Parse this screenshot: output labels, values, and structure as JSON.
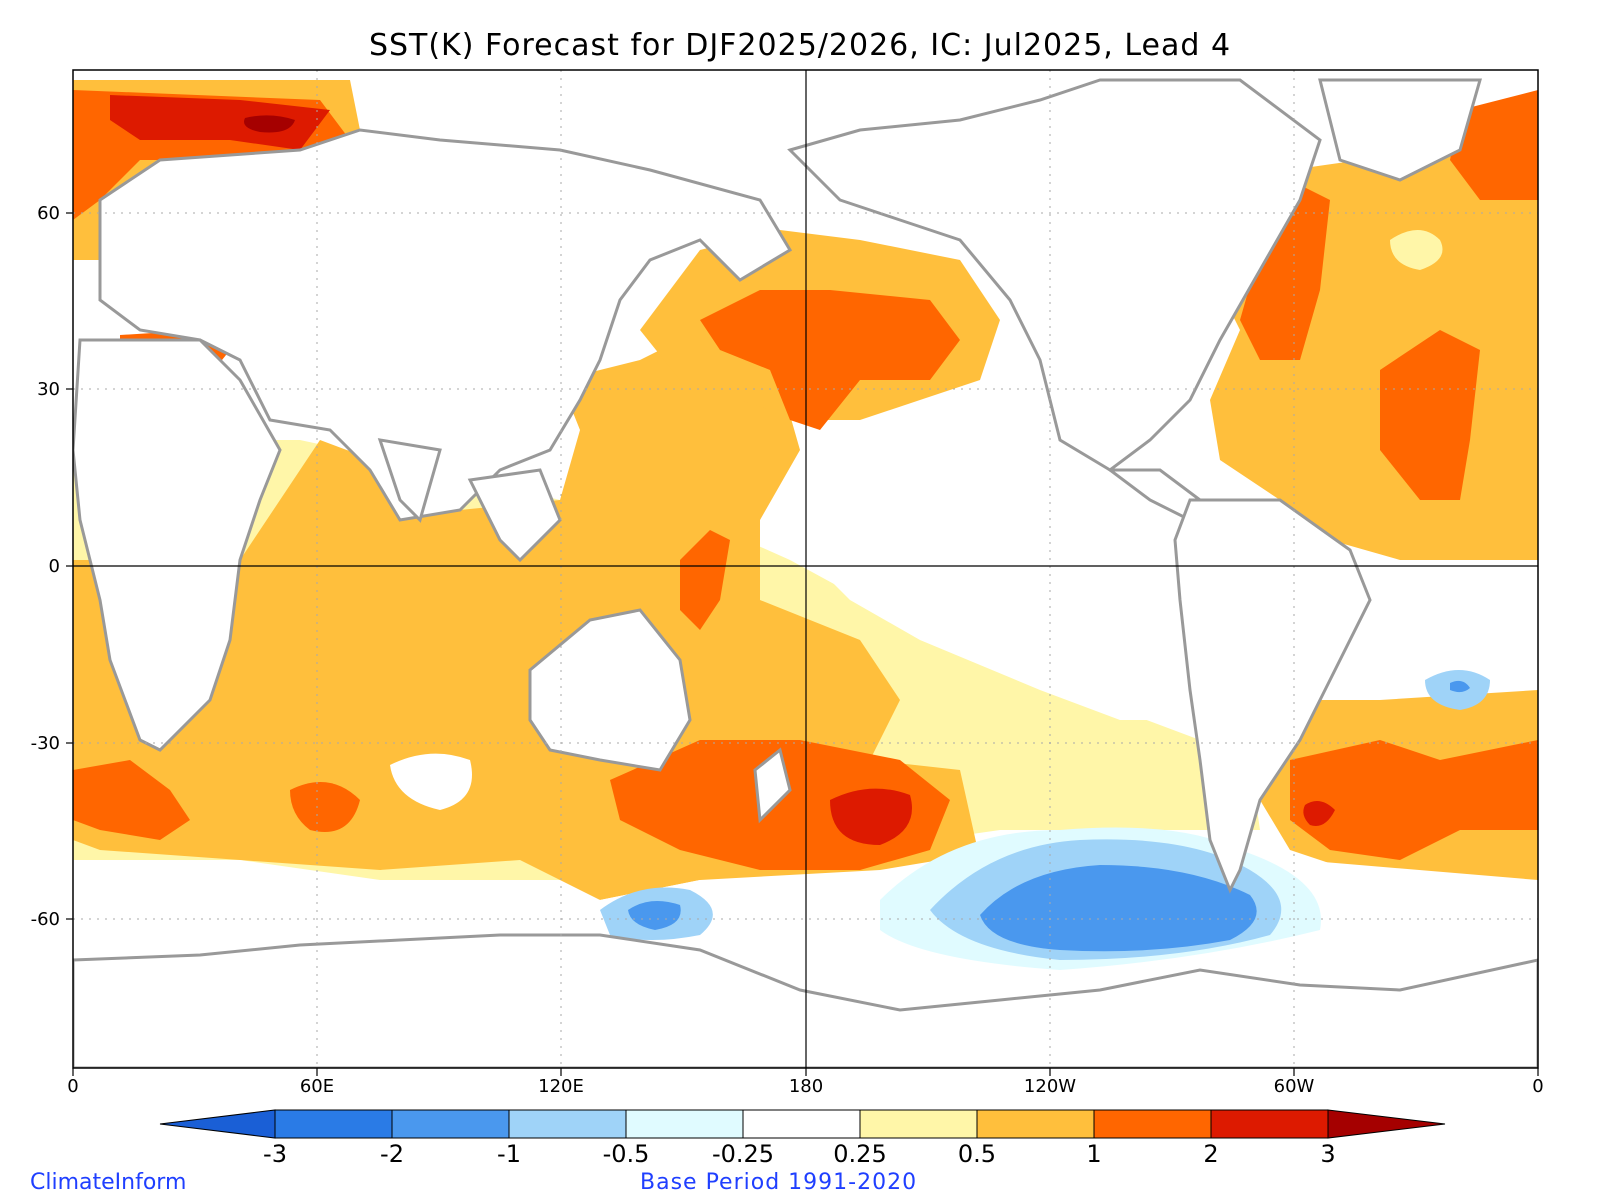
{
  "title": "SST(K) Forecast for DJF2025/2026, IC: Jul2025, Lead 4",
  "axes": {
    "x_ticks": [
      "0",
      "60E",
      "120E",
      "180",
      "120W",
      "60W",
      "0"
    ],
    "y_ticks": [
      "60",
      "30",
      "0",
      "-30",
      "-60"
    ]
  },
  "colorbar": {
    "labels": [
      "-3",
      "-2",
      "-1",
      "-0.5",
      "-0.25",
      "0.25",
      "0.5",
      "1",
      "2",
      "3"
    ],
    "colors": {
      "below_-3": "#1a5fd6",
      "-3_-2": "#2a7be6",
      "-2_-1": "#4a98ee",
      "-1_-0.5": "#9fd3f8",
      "-0.5_-0.25": "#e0fbff",
      "-0.25_0.25": "#ffffff",
      "0.25_0.5": "#fff6a8",
      "0.5_1": "#ffbf3c",
      "1_2": "#ff6600",
      "2_3": "#dd1a00",
      "above_3": "#a50000"
    }
  },
  "credit": "ClimateInform",
  "base_period": "Base Period 1991-2020"
}
